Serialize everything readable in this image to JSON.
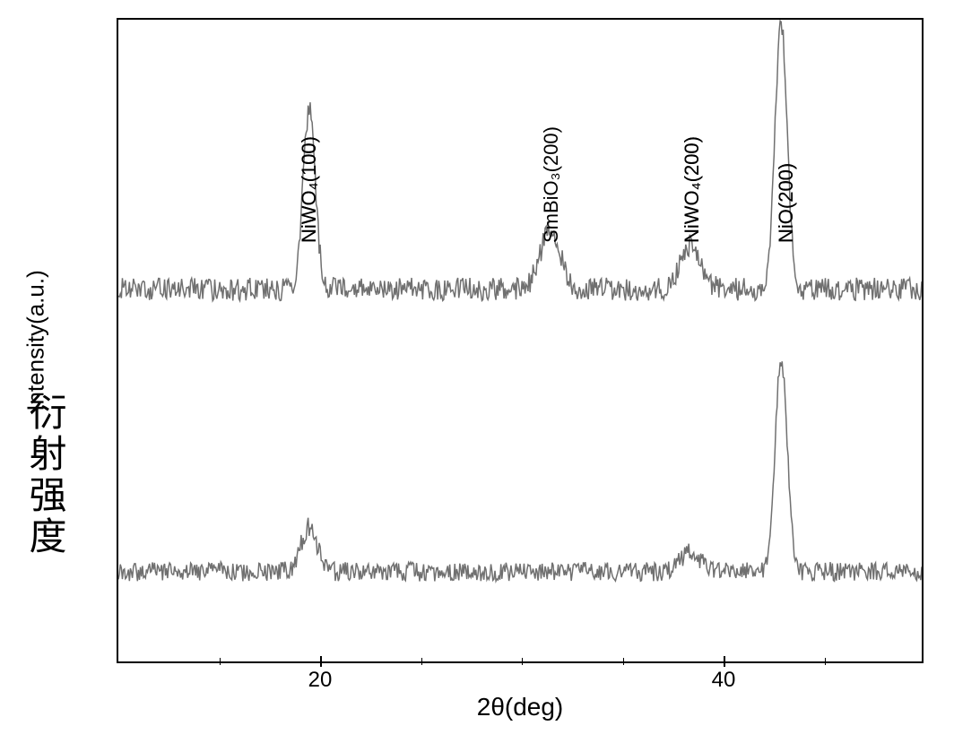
{
  "chart": {
    "type": "line",
    "background_color": "#ffffff",
    "border_color": "#000000",
    "line_color": "#707070",
    "line_width": 1.5,
    "y_axis_label_en": "Intensity(a.u.)",
    "y_axis_label_cn": "衍射强度",
    "x_axis_label": "2θ(deg)",
    "x_axis": {
      "min": 10,
      "max": 50,
      "major_ticks": [
        20,
        40
      ],
      "minor_ticks": [
        15,
        25,
        30,
        35,
        45
      ]
    },
    "label_fontsize": 26,
    "tick_fontsize": 24,
    "peak_label_fontsize": 22,
    "traces": [
      {
        "name": "upper",
        "baseline_y": 0.42,
        "noise_amplitude": 0.018,
        "peaks": [
          {
            "x": 19.5,
            "height": 0.28,
            "width": 0.3,
            "label": "NiWO₄(100)",
            "label_offset_x": 12,
            "label_offset_y": 0.11
          },
          {
            "x": 31.5,
            "height": 0.09,
            "width": 0.5,
            "label": "SmBiO₃(200)",
            "label_offset_x": 12,
            "label_offset_y": 0.11
          },
          {
            "x": 38.5,
            "height": 0.07,
            "width": 0.5,
            "label": "NiWO₄(200)",
            "label_offset_x": 12,
            "label_offset_y": 0.11
          },
          {
            "x": 43,
            "height": 0.42,
            "width": 0.3,
            "label": "NiO(200)",
            "label_offset_x": 15,
            "label_offset_y": 0.11
          }
        ]
      },
      {
        "name": "lower",
        "baseline_y": 0.86,
        "noise_amplitude": 0.015,
        "peaks": [
          {
            "x": 19.5,
            "height": 0.07,
            "width": 0.4,
            "label": "NiWO₄(100)",
            "label_offset_x": 12,
            "label_offset_y": 0.55
          },
          {
            "x": 38.5,
            "height": 0.03,
            "width": 0.5,
            "label": "NiWO₄(200)",
            "label_offset_x": 12,
            "label_offset_y": 0.55
          },
          {
            "x": 43,
            "height": 0.33,
            "width": 0.3,
            "label": "NiO(200)",
            "label_offset_x": 15,
            "label_offset_y": 0.55
          }
        ]
      }
    ]
  }
}
